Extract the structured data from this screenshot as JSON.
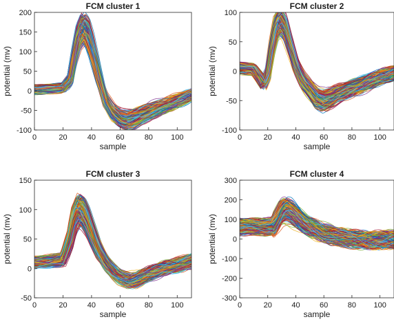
{
  "chart_data": [
    {
      "type": "line",
      "title": "FCM cluster 1",
      "xlabel": "sample",
      "ylabel": "potential (mv)",
      "xlim": [
        0,
        110
      ],
      "ylim": [
        -100,
        200
      ],
      "xticks": [
        0,
        20,
        40,
        60,
        80,
        100
      ],
      "yticks": [
        -100,
        -50,
        0,
        50,
        100,
        150,
        200
      ],
      "grid": false,
      "legend": "none",
      "series_count": 300,
      "waveform_template": {
        "x": [
          0,
          10,
          20,
          25,
          28,
          31,
          34,
          37,
          40,
          45,
          50,
          55,
          60,
          65,
          70,
          80,
          90,
          100,
          110
        ],
        "y": [
          3,
          5,
          8,
          30,
          90,
          140,
          162,
          150,
          115,
          40,
          -25,
          -55,
          -70,
          -75,
          -70,
          -55,
          -40,
          -25,
          -10
        ]
      },
      "spread": 18
    },
    {
      "type": "line",
      "title": "FCM cluster 2",
      "xlabel": "sample",
      "ylabel": "potential (mv)",
      "xlim": [
        0,
        110
      ],
      "ylim": [
        -100,
        100
      ],
      "xticks": [
        0,
        20,
        40,
        60,
        80,
        100
      ],
      "yticks": [
        -100,
        -50,
        0,
        50,
        100
      ],
      "grid": false,
      "legend": "none",
      "series_count": 300,
      "waveform_template": {
        "x": [
          0,
          10,
          17,
          20,
          23,
          26,
          29,
          32,
          35,
          40,
          45,
          50,
          55,
          60,
          65,
          70,
          80,
          90,
          100,
          110
        ],
        "y": [
          5,
          3,
          -20,
          -5,
          40,
          75,
          85,
          75,
          50,
          10,
          -15,
          -30,
          -45,
          -50,
          -45,
          -38,
          -30,
          -20,
          -10,
          -3
        ]
      },
      "spread": 14
    },
    {
      "type": "line",
      "title": "FCM cluster 3",
      "xlabel": "sample",
      "ylabel": "potential (mv)",
      "xlim": [
        0,
        110
      ],
      "ylim": [
        -50,
        150
      ],
      "xticks": [
        0,
        20,
        40,
        60,
        80,
        100
      ],
      "yticks": [
        -50,
        0,
        50,
        100,
        150
      ],
      "grid": false,
      "legend": "none",
      "series_count": 300,
      "waveform_template": {
        "x": [
          0,
          10,
          20,
          25,
          28,
          31,
          34,
          37,
          40,
          45,
          50,
          55,
          60,
          65,
          70,
          80,
          90,
          100,
          110
        ],
        "y": [
          10,
          12,
          15,
          50,
          85,
          100,
          95,
          80,
          60,
          30,
          10,
          -5,
          -15,
          -20,
          -20,
          -10,
          0,
          5,
          12
        ]
      },
      "spread": 14
    },
    {
      "type": "line",
      "title": "FCM cluster 4",
      "xlabel": "sample",
      "ylabel": "potential (mv)",
      "xlim": [
        0,
        110
      ],
      "ylim": [
        -300,
        300
      ],
      "xticks": [
        0,
        20,
        40,
        60,
        80,
        100
      ],
      "yticks": [
        -300,
        -200,
        -100,
        0,
        100,
        200,
        300
      ],
      "grid": false,
      "legend": "none",
      "series_count": 300,
      "waveform_template": {
        "x": [
          0,
          10,
          20,
          24,
          27,
          30,
          33,
          36,
          40,
          45,
          50,
          60,
          70,
          80,
          90,
          100,
          110
        ],
        "y": [
          60,
          60,
          60,
          65,
          100,
          140,
          150,
          140,
          115,
          85,
          60,
          30,
          10,
          0,
          -5,
          -5,
          -5
        ]
      },
      "spread": 55
    }
  ]
}
